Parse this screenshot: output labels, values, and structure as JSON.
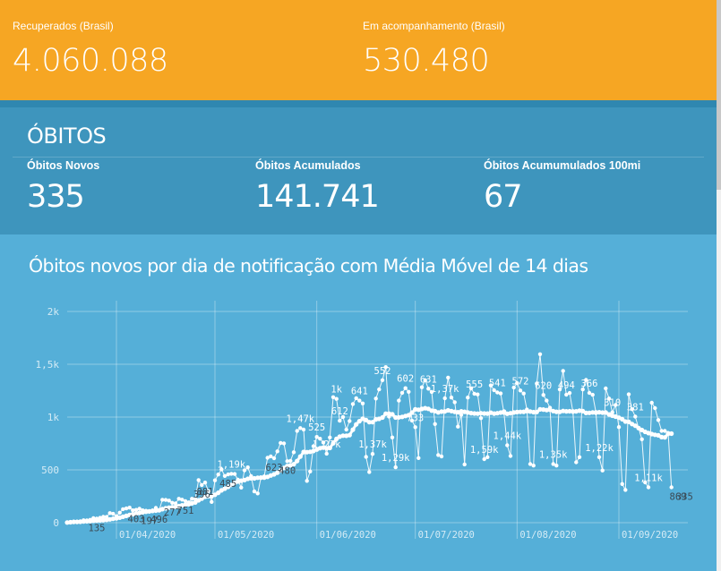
{
  "summary": {
    "recovered": {
      "label": "Recuperados (Brasil)",
      "value": "4.060.088"
    },
    "monitoring": {
      "label": "Em acompanhamento (Brasil)",
      "value": "530.480"
    }
  },
  "deaths": {
    "title": "ÓBITOS",
    "new": {
      "label": "Óbitos Novos",
      "value": "335"
    },
    "accumulated": {
      "label": "Óbitos Acumulados",
      "value": "141.741"
    },
    "per100k": {
      "label": "Óbitos Acumumulados 100mi",
      "value": "67"
    }
  },
  "colors": {
    "orange": "#f6a623",
    "deaths_bg": "#3e95bd",
    "chart_bg": "#55afd8"
  },
  "chart": {
    "title": "Óbitos novos por dia de notificação com Média Móvel de 14 dias"
  },
  "chart_data": {
    "type": "line",
    "title": "Óbitos novos por dia de notificação com Média Móvel de 14 dias",
    "xlabel": "",
    "ylabel": "",
    "ylim": [
      0,
      2000
    ],
    "y_ticks": [
      "0",
      "500",
      "1k",
      "1,5k",
      "2k"
    ],
    "x_ticks": [
      "01/04/2020",
      "01/05/2020",
      "01/06/2020",
      "01/07/2020",
      "01/08/2020",
      "01/09/2020"
    ],
    "x_range": [
      "2020-03-17",
      "2020-09-22"
    ],
    "grid": true,
    "series": [
      {
        "values_daily": [
          2,
          7,
          11,
          10,
          13,
          23,
          22,
          27,
          43,
          38,
          46,
          55,
          54,
          91,
          84,
          61,
          95,
          128,
          135,
          142,
          117,
          121,
          132,
          117,
          113,
          105,
          116,
          140,
          118,
          217,
          215,
          209,
          188,
          183,
          226,
          218,
          204,
          192,
          226,
          225,
          403,
          357,
          380,
          298,
          197,
          401,
          456,
          505,
          442,
          457,
          463,
          461,
          407,
          332,
          496,
          524,
          441,
          296,
          277,
          424,
          438,
          614,
          628,
          610,
          675,
          755,
          751,
          582,
          586,
          667,
          869,
          896,
          881,
          396,
          485,
          724,
          812,
          795,
          759,
          653,
          807,
          1188,
          1172,
          965,
          1001,
          881,
          963,
          1124,
          1179,
          1156,
          1129,
          623,
          480,
          651,
          1175,
          1262,
          1349,
          1473,
          1005,
          807,
          525,
          1156,
          1230,
          1274,
          1239,
          967,
          904,
          612,
          1282,
          1349,
          1269,
          1238,
          934,
          641,
          627,
          1178,
          1374,
          1185,
          1141,
          909,
          1022,
          552,
          1185,
          1271,
          1220,
          1214,
          990,
          602,
          620,
          1300,
          1254,
          1233,
          1224,
          1039,
          733,
          631,
          1280,
          1321,
          1252,
          1223,
          1071,
          555,
          541,
          1318,
          1595,
          1209,
          1156,
          1088,
          555,
          541,
          1262,
          1437,
          1212,
          1228,
          1048,
          572,
          620,
          1262,
          1352,
          1229,
          1211,
          1048,
          620,
          494,
          1271,
          1175,
          1045,
          1114,
          905,
          366,
          310,
          1215,
          1075,
          1004,
          895,
          790,
          381,
          335,
          1136,
          1085,
          972,
          869,
          869,
          850,
          335
        ],
        "values_moving_average_note": "smooth"
      }
    ],
    "labeled_points": [
      {
        "x": "2020-03-26",
        "label": "135"
      },
      {
        "x": "2020-04-07",
        "label": "403"
      },
      {
        "x": "2020-04-11",
        "label": "197"
      },
      {
        "x": "2020-04-14",
        "label": "496"
      },
      {
        "x": "2020-04-18",
        "label": "277"
      },
      {
        "x": "2020-04-22",
        "label": "751"
      },
      {
        "x": "2020-04-27",
        "label": "396"
      },
      {
        "x": "2020-04-28",
        "label": "881"
      },
      {
        "x": "2020-05-05",
        "label": "485"
      },
      {
        "x": "2020-05-06",
        "label": "1,19k"
      },
      {
        "x": "2020-05-19",
        "label": "623"
      },
      {
        "x": "2020-05-23",
        "label": "480"
      },
      {
        "x": "2020-05-27",
        "label": "1,47k"
      },
      {
        "x": "2020-06-01",
        "label": "525"
      },
      {
        "x": "2020-06-04",
        "label": "1,27k"
      },
      {
        "x": "2020-06-07",
        "label": "1k"
      },
      {
        "x": "2020-06-08",
        "label": "612"
      },
      {
        "x": "2020-06-14",
        "label": "641"
      },
      {
        "x": "2020-06-18",
        "label": "1,37k"
      },
      {
        "x": "2020-06-21",
        "label": "552"
      },
      {
        "x": "2020-06-25",
        "label": "1,29k"
      },
      {
        "x": "2020-06-28",
        "label": "602"
      },
      {
        "x": "2020-07-01",
        "label": "733"
      },
      {
        "x": "2020-07-05",
        "label": "631"
      },
      {
        "x": "2020-07-10",
        "label": "1,37k"
      },
      {
        "x": "2020-07-19",
        "label": "555"
      },
      {
        "x": "2020-07-22",
        "label": "1,59k"
      },
      {
        "x": "2020-07-26",
        "label": "541"
      },
      {
        "x": "2020-07-29",
        "label": "1,44k"
      },
      {
        "x": "2020-08-02",
        "label": "572"
      },
      {
        "x": "2020-08-09",
        "label": "620"
      },
      {
        "x": "2020-08-12",
        "label": "1,35k"
      },
      {
        "x": "2020-08-16",
        "label": "494"
      },
      {
        "x": "2020-08-23",
        "label": "366"
      },
      {
        "x": "2020-08-26",
        "label": "1,22k"
      },
      {
        "x": "2020-08-30",
        "label": "310"
      },
      {
        "x": "2020-09-06",
        "label": "381"
      },
      {
        "x": "2020-09-10",
        "label": "1,11k"
      },
      {
        "x": "2020-09-19",
        "label": "869"
      },
      {
        "x": "2020-09-21",
        "label": "335"
      }
    ]
  }
}
